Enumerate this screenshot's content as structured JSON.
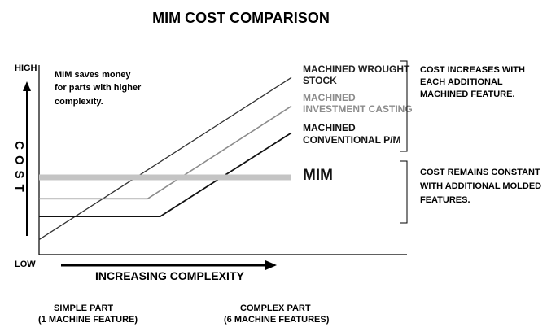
{
  "chart_data": {
    "type": "line",
    "title": "MIM COST COMPARISON",
    "ylabel": "COST",
    "ylabel_high": "HIGH",
    "ylabel_low": "LOW",
    "xlabel": "INCREASING COMPLEXITY",
    "x_left_label_1": "SIMPLE PART",
    "x_left_label_2": "(1 MACHINE FEATURE)",
    "x_right_label_1": "COMPLEX PART",
    "x_right_label_2": "(6 MACHINE FEATURES)",
    "annotation_lines": [
      "MIM saves money",
      "for parts with higher",
      "complexity."
    ],
    "note_machined_lines": [
      "COST INCREASES WITH",
      "EACH ADDITIONAL",
      "MACHINED FEATURE."
    ],
    "note_mim_lines": [
      "COST REMAINS CONSTANT",
      "WITH ADDITIONAL MOLDED",
      "FEATURES."
    ],
    "xlim": [
      0,
      100
    ],
    "ylim": [
      0,
      100
    ],
    "grid": false,
    "series": [
      {
        "name_lines": [
          "MACHINED WROUGHT",
          "STOCK"
        ],
        "color": "#333333",
        "label_color": "#222222",
        "points": [
          [
            0,
            2
          ],
          [
            100,
            93
          ]
        ]
      },
      {
        "name_lines": [
          "MACHINED",
          "INVESTMENT CASTING"
        ],
        "color": "#8c8c8c",
        "label_color": "#8c8c8c",
        "points": [
          [
            0,
            25
          ],
          [
            43,
            25
          ],
          [
            100,
            77
          ]
        ]
      },
      {
        "name_lines": [
          "MACHINED",
          "CONVENTIONAL P/M"
        ],
        "color": "#111111",
        "label_color": "#111111",
        "points": [
          [
            0,
            15
          ],
          [
            48,
            15
          ],
          [
            100,
            62
          ]
        ]
      },
      {
        "name_lines": [
          "MIM"
        ],
        "color": "#c4c4c4",
        "label_color": "#111111",
        "points": [
          [
            0,
            37
          ],
          [
            100,
            37
          ]
        ]
      }
    ]
  }
}
